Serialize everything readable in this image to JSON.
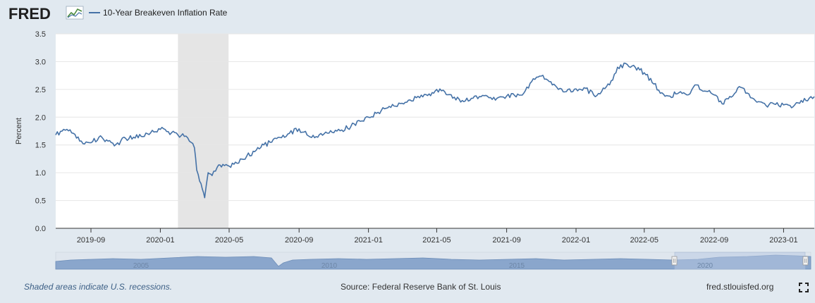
{
  "header": {
    "logo_text": "FRED",
    "series_title": "10-Year Breakeven Inflation Rate"
  },
  "footer": {
    "recession_note": "Shaded areas indicate U.S. recessions.",
    "source": "Source: Federal Reserve Bank of St. Louis",
    "site": "fred.stlouisfed.org"
  },
  "colors": {
    "line": "#4572a7",
    "plot_bg": "#ffffff",
    "page_bg": "#e1e9f0",
    "recession": "#e5e5e5",
    "navigator_fill": "#8aa6cc",
    "navigator_selection": "#b7c8e2"
  },
  "chart_data": {
    "type": "line",
    "title": "",
    "xlabel": "",
    "ylabel": "Percent",
    "ylim": [
      0,
      3.5
    ],
    "yticks": [
      "0.0",
      "0.5",
      "1.0",
      "1.5",
      "2.0",
      "2.5",
      "3.0",
      "3.5"
    ],
    "xlim": [
      "2019-07-01",
      "2023-02-24"
    ],
    "xticks": [
      "2019-09",
      "2020-01",
      "2020-05",
      "2020-09",
      "2021-01",
      "2021-05",
      "2021-09",
      "2022-01",
      "2022-05",
      "2022-09",
      "2023-01"
    ],
    "grid": true,
    "legend": "top-left",
    "recessions": [
      {
        "start": "2020-02-01",
        "end": "2020-04-30"
      }
    ],
    "series": [
      {
        "name": "10-Year Breakeven Inflation Rate",
        "x": [
          "2019-07-01",
          "2019-07-15",
          "2019-08-01",
          "2019-08-15",
          "2019-09-01",
          "2019-09-15",
          "2019-10-01",
          "2019-10-15",
          "2019-11-01",
          "2019-11-15",
          "2019-12-01",
          "2019-12-15",
          "2020-01-01",
          "2020-01-15",
          "2020-02-01",
          "2020-02-15",
          "2020-03-01",
          "2020-03-05",
          "2020-03-10",
          "2020-03-15",
          "2020-03-19",
          "2020-03-25",
          "2020-04-01",
          "2020-04-10",
          "2020-04-20",
          "2020-05-01",
          "2020-05-15",
          "2020-06-01",
          "2020-06-15",
          "2020-07-01",
          "2020-07-15",
          "2020-08-01",
          "2020-08-15",
          "2020-09-01",
          "2020-09-15",
          "2020-10-01",
          "2020-10-15",
          "2020-11-01",
          "2020-11-15",
          "2020-12-01",
          "2020-12-15",
          "2021-01-01",
          "2021-01-15",
          "2021-02-01",
          "2021-02-15",
          "2021-03-01",
          "2021-03-15",
          "2021-04-01",
          "2021-04-15",
          "2021-05-01",
          "2021-05-15",
          "2021-06-01",
          "2021-06-15",
          "2021-07-01",
          "2021-07-15",
          "2021-08-01",
          "2021-08-15",
          "2021-09-01",
          "2021-09-15",
          "2021-10-01",
          "2021-10-15",
          "2021-11-01",
          "2021-11-15",
          "2021-12-01",
          "2021-12-15",
          "2022-01-01",
          "2022-01-15",
          "2022-02-01",
          "2022-02-15",
          "2022-03-01",
          "2022-03-15",
          "2022-04-01",
          "2022-04-15",
          "2022-05-01",
          "2022-05-15",
          "2022-06-01",
          "2022-06-15",
          "2022-07-01",
          "2022-07-15",
          "2022-08-01",
          "2022-08-15",
          "2022-09-01",
          "2022-09-15",
          "2022-10-01",
          "2022-10-15",
          "2022-11-01",
          "2022-11-15",
          "2022-12-01",
          "2022-12-15",
          "2023-01-01",
          "2023-01-15",
          "2023-02-01",
          "2023-02-15",
          "2023-02-24"
        ],
        "values": [
          1.68,
          1.78,
          1.71,
          1.57,
          1.54,
          1.64,
          1.57,
          1.51,
          1.62,
          1.64,
          1.65,
          1.72,
          1.78,
          1.74,
          1.68,
          1.66,
          1.45,
          1.05,
          0.85,
          0.7,
          0.55,
          1.0,
          0.95,
          1.1,
          1.15,
          1.12,
          1.17,
          1.3,
          1.38,
          1.5,
          1.55,
          1.63,
          1.71,
          1.79,
          1.68,
          1.65,
          1.7,
          1.72,
          1.77,
          1.83,
          1.94,
          2.0,
          2.07,
          2.16,
          2.2,
          2.25,
          2.31,
          2.35,
          2.39,
          2.5,
          2.46,
          2.36,
          2.3,
          2.34,
          2.37,
          2.35,
          2.34,
          2.38,
          2.39,
          2.43,
          2.64,
          2.74,
          2.64,
          2.5,
          2.46,
          2.51,
          2.53,
          2.4,
          2.46,
          2.58,
          2.9,
          2.95,
          2.9,
          2.8,
          2.62,
          2.44,
          2.38,
          2.44,
          2.4,
          2.58,
          2.47,
          2.4,
          2.24,
          2.36,
          2.55,
          2.42,
          2.27,
          2.21,
          2.24,
          2.22,
          2.17,
          2.3,
          2.34,
          2.37
        ]
      }
    ]
  },
  "navigator": {
    "labels": [
      "2005",
      "2010",
      "2015",
      "2020"
    ]
  }
}
